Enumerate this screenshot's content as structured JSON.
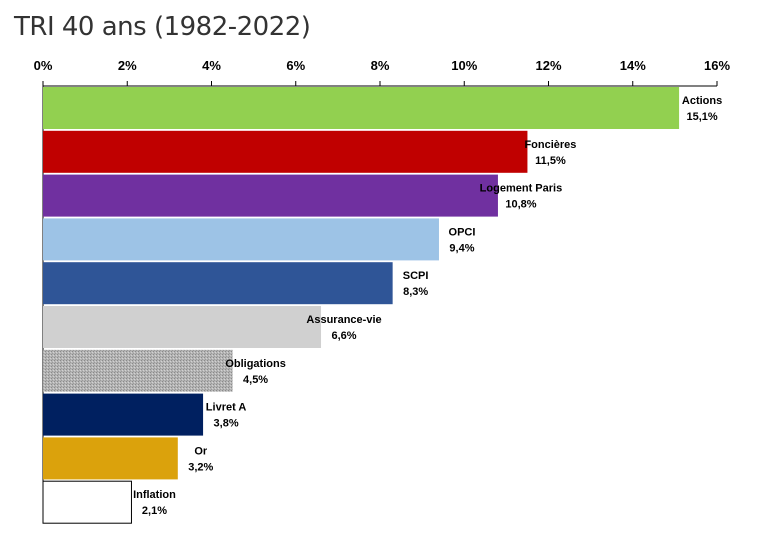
{
  "chart_data": {
    "type": "bar",
    "orientation": "horizontal",
    "title": "TRI 40 ans (1982-2022)",
    "xlim": [
      0,
      16
    ],
    "x_ticks": [
      {
        "value": 0,
        "label": "0%"
      },
      {
        "value": 2,
        "label": "2%"
      },
      {
        "value": 4,
        "label": "4%"
      },
      {
        "value": 6,
        "label": "6%"
      },
      {
        "value": 8,
        "label": "8%"
      },
      {
        "value": 10,
        "label": "10%"
      },
      {
        "value": 12,
        "label": "12%"
      },
      {
        "value": 14,
        "label": "14%"
      },
      {
        "value": 16,
        "label": "16%"
      }
    ],
    "axis_position": "top",
    "grid": false,
    "bars": [
      {
        "category": "Actions",
        "value": 15.1,
        "value_label": "15,1%",
        "color": "#92d050",
        "pattern": "solid"
      },
      {
        "category": "Foncières",
        "value": 11.5,
        "value_label": "11,5%",
        "color": "#c00000",
        "pattern": "solid"
      },
      {
        "category": "Logement Paris",
        "value": 10.8,
        "value_label": "10,8%",
        "color": "#7030a0",
        "pattern": "solid"
      },
      {
        "category": "OPCI",
        "value": 9.4,
        "value_label": "9,4%",
        "color": "#9dc3e6",
        "pattern": "solid"
      },
      {
        "category": "SCPI",
        "value": 8.3,
        "value_label": "8,3%",
        "color": "#2f5597",
        "pattern": "solid"
      },
      {
        "category": "Assurance-vie",
        "value": 6.6,
        "value_label": "6,6%",
        "color": "#d0d0d0",
        "pattern": "solid"
      },
      {
        "category": "Obligations",
        "value": 4.5,
        "value_label": "4,5%",
        "color": "#a6a6a6",
        "pattern": "dotted"
      },
      {
        "category": "Livret A",
        "value": 3.8,
        "value_label": "3,8%",
        "color": "#002060",
        "pattern": "solid"
      },
      {
        "category": "Or",
        "value": 3.2,
        "value_label": "3,2%",
        "color": "#dba20c",
        "pattern": "solid"
      },
      {
        "category": "Inflation",
        "value": 2.1,
        "value_label": "2,1%",
        "color": "#ffffff",
        "pattern": "outline"
      }
    ]
  }
}
